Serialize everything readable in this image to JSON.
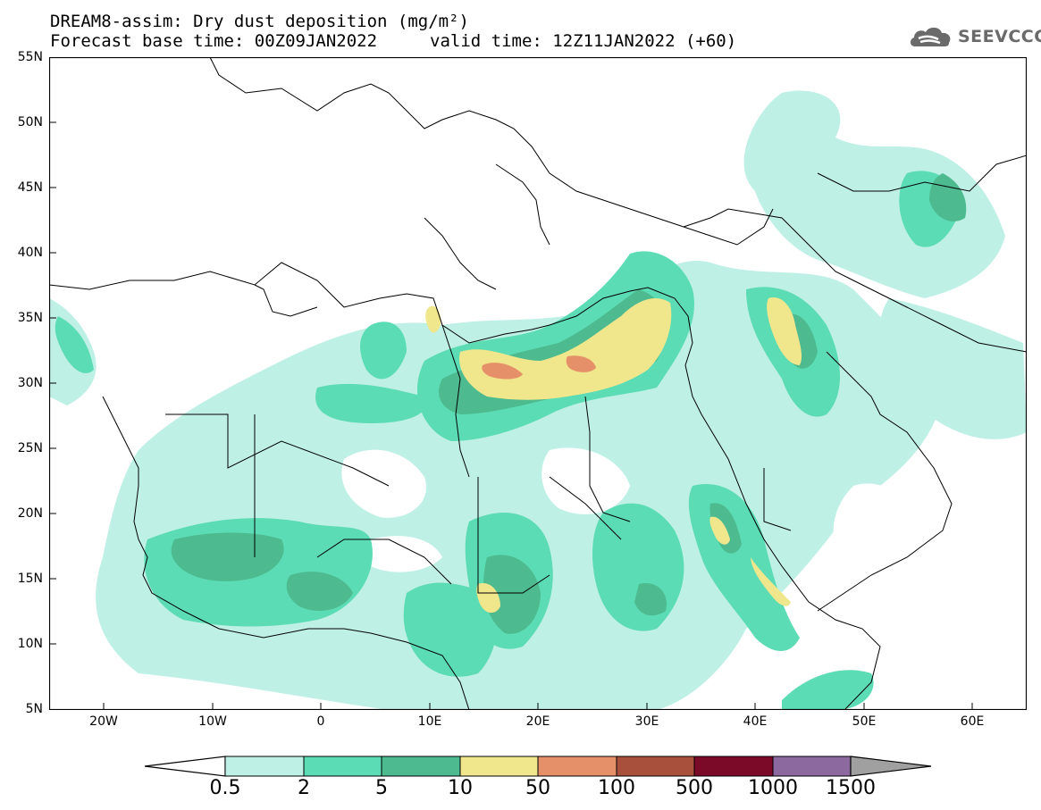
{
  "title": {
    "line1": "DREAM8-assim: Dry dust deposition (mg/m²)",
    "line2": "Forecast base time: 00Z09JAN2022",
    "valid": "valid time: 12Z11JAN2022 (+60)"
  },
  "logo": {
    "text": "SEEVCCC",
    "icon": "cloud-icon"
  },
  "axes": {
    "lat_labels": [
      "55N",
      "50N",
      "45N",
      "40N",
      "35N",
      "30N",
      "25N",
      "20N",
      "15N",
      "10N",
      "5N"
    ],
    "lon_labels": [
      "20W",
      "10W",
      "0",
      "10E",
      "20E",
      "30E",
      "40E",
      "50E",
      "60E"
    ],
    "lat_range": [
      5,
      55
    ],
    "lon_range": [
      -25,
      65
    ]
  },
  "colorbar": {
    "labels": [
      "0.5",
      "2",
      "5",
      "10",
      "50",
      "100",
      "500",
      "1000",
      "1500"
    ],
    "colors": [
      "#bff0e6",
      "#5cdcb4",
      "#4dba8f",
      "#f0e68c",
      "#e6906a",
      "#a8503c",
      "#7a0a28",
      "#8c6aa0",
      "#a0a0a0"
    ]
  },
  "colors": {
    "level1": "#bff0e6",
    "level2": "#5cdcb4",
    "level3": "#4dba8f",
    "level4": "#f0e68c",
    "level5": "#e6906a",
    "border": "#000000",
    "logo": "#6a6a6a"
  }
}
